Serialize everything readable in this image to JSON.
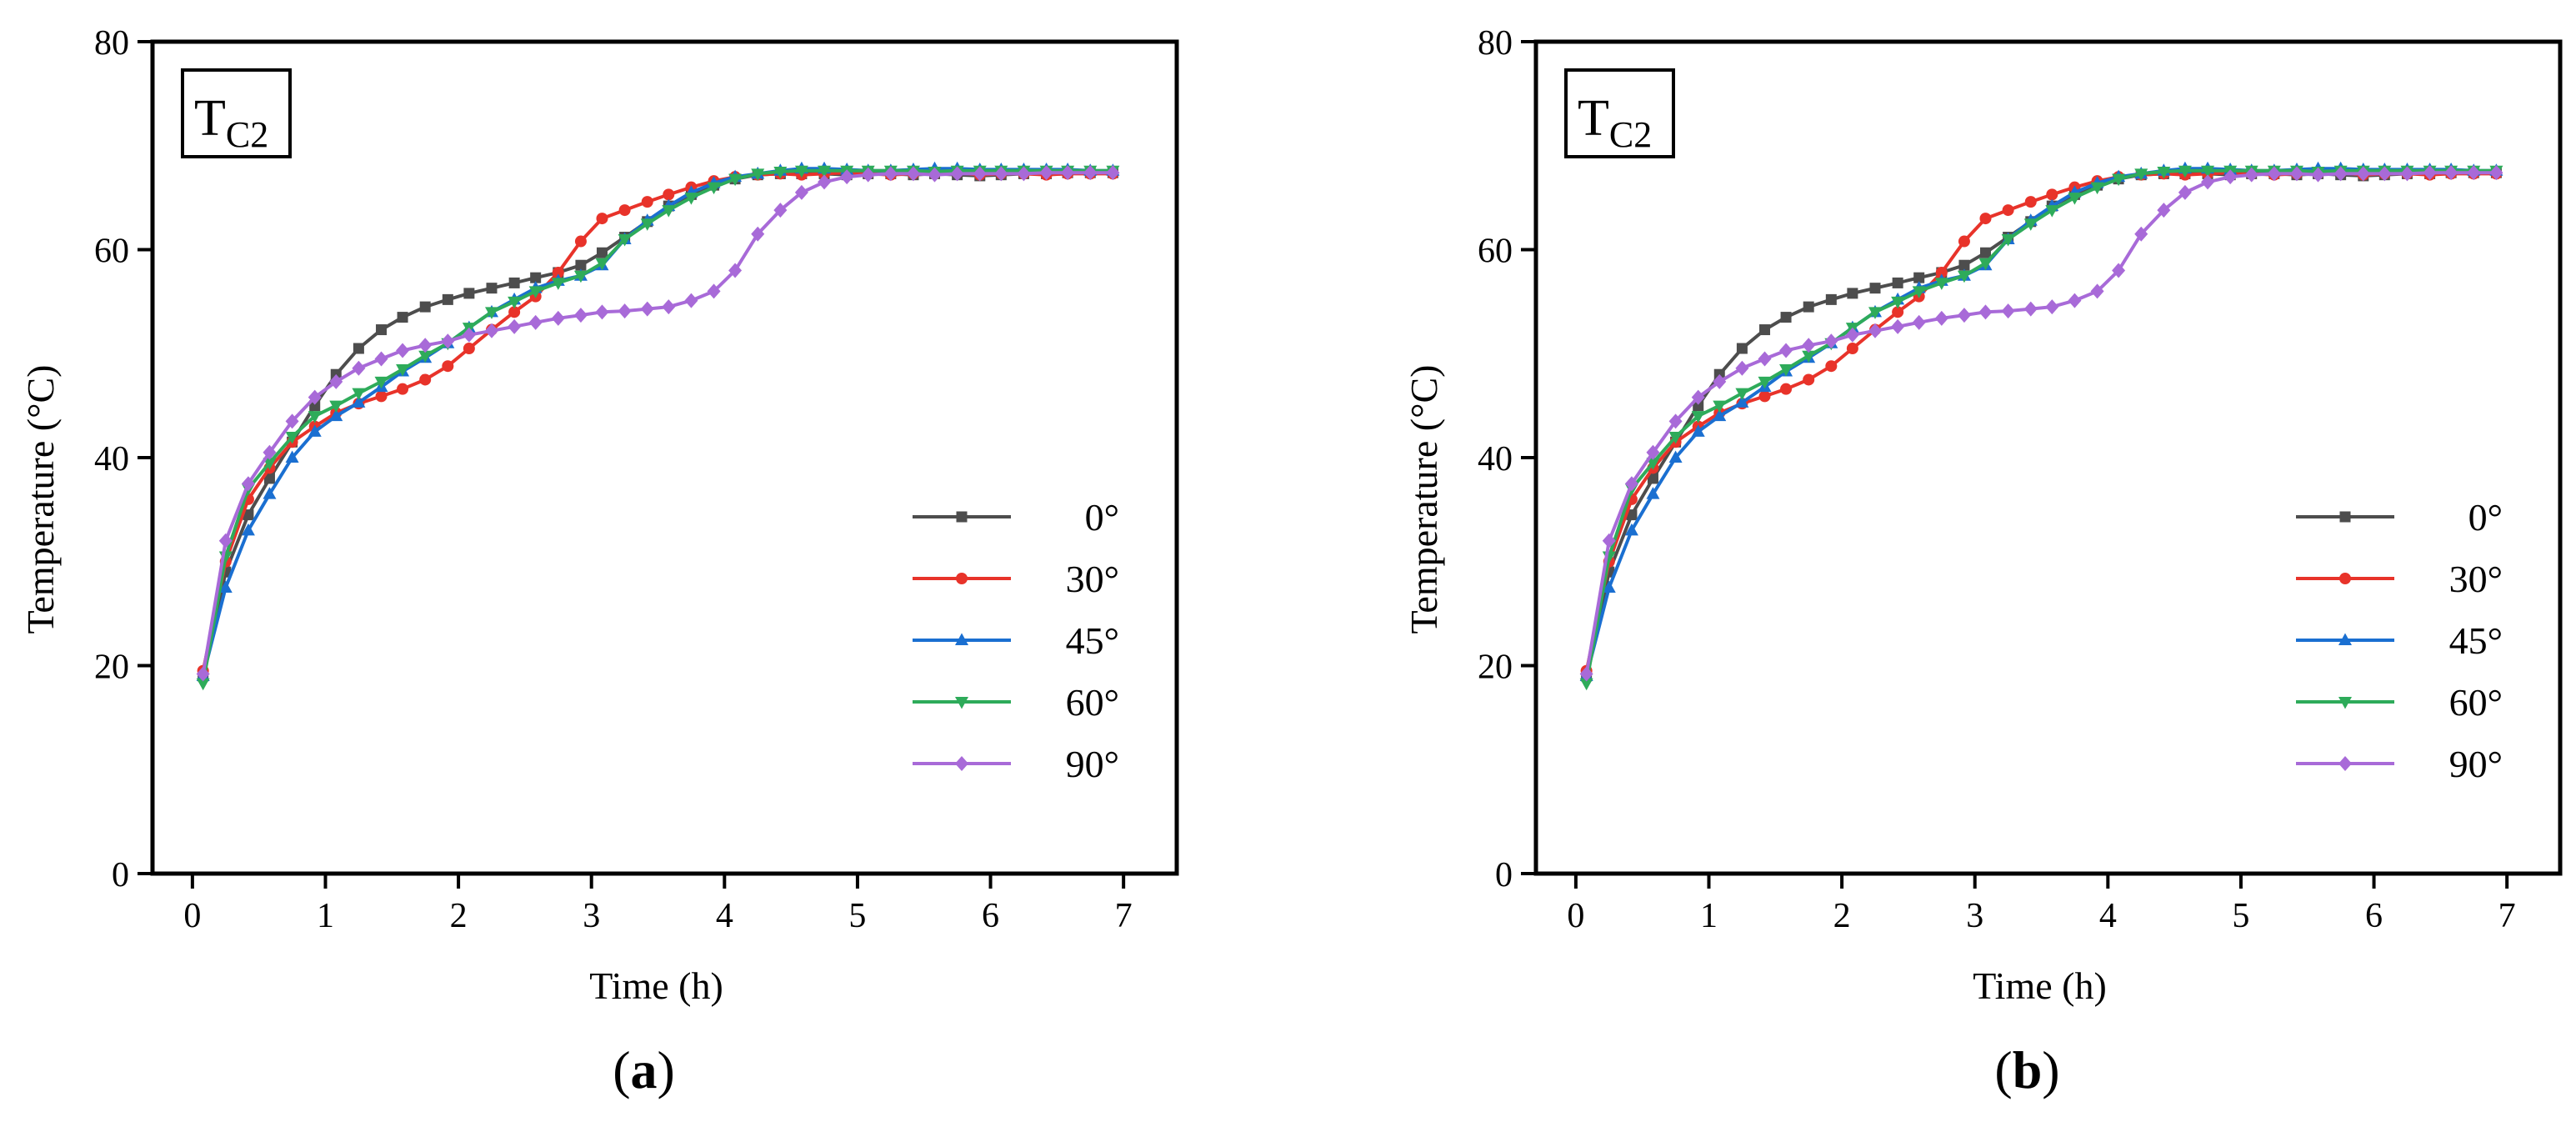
{
  "chart_data": [
    {
      "panel_label_prefix": "(",
      "panel_letter": "a",
      "panel_label_suffix": ")",
      "type": "line",
      "annotation": {
        "main": "T",
        "sub": "C2"
      },
      "xlabel": "Time (h)",
      "ylabel": "Temperature (°C)",
      "xlim": [
        -0.3,
        7.4
      ],
      "ylim": [
        0,
        80
      ],
      "xticks": [
        0,
        1,
        2,
        3,
        4,
        5,
        6,
        7
      ],
      "yticks": [
        0,
        20,
        40,
        60,
        80
      ],
      "legend_position": "lower-right",
      "series": [
        {
          "name": "0°",
          "color": "#4d4d4d",
          "marker": "square",
          "x": [
            0.08,
            0.25,
            0.42,
            0.58,
            0.75,
            0.92,
            1.08,
            1.25,
            1.42,
            1.58,
            1.75,
            1.92,
            2.08,
            2.25,
            2.42,
            2.58,
            2.75,
            2.92,
            3.08,
            3.25,
            3.42,
            3.58,
            3.75,
            3.92,
            4.08,
            4.25,
            4.42,
            4.58,
            4.75,
            4.92,
            5.08,
            5.25,
            5.42,
            5.58,
            5.75,
            5.92,
            6.08,
            6.25,
            6.42,
            6.58,
            6.75,
            6.92
          ],
          "y": [
            19.0,
            29.0,
            34.5,
            38.0,
            41.5,
            45.0,
            48.0,
            50.5,
            52.3,
            53.5,
            54.5,
            55.2,
            55.8,
            56.3,
            56.8,
            57.3,
            57.8,
            58.5,
            59.7,
            61.2,
            62.7,
            64.2,
            65.3,
            66.2,
            66.8,
            67.2,
            67.3,
            67.3,
            67.3,
            67.2,
            67.3,
            67.3,
            67.2,
            67.3,
            67.2,
            67.1,
            67.2,
            67.3,
            67.3,
            67.4,
            67.4,
            67.4
          ]
        },
        {
          "name": "30°",
          "color": "#e8332a",
          "marker": "circle",
          "x": [
            0.08,
            0.25,
            0.42,
            0.58,
            0.75,
            0.92,
            1.08,
            1.25,
            1.42,
            1.58,
            1.75,
            1.92,
            2.08,
            2.25,
            2.42,
            2.58,
            2.75,
            2.92,
            3.08,
            3.25,
            3.42,
            3.58,
            3.75,
            3.92,
            4.08,
            4.25,
            4.42,
            4.58,
            4.75,
            4.92,
            5.08,
            5.25,
            5.42,
            5.58,
            5.75,
            5.92,
            6.08,
            6.25,
            6.42,
            6.58,
            6.75,
            6.92
          ],
          "y": [
            19.5,
            30.0,
            36.0,
            39.0,
            41.5,
            43.0,
            44.3,
            45.2,
            45.9,
            46.6,
            47.5,
            48.8,
            50.5,
            52.3,
            54.0,
            55.5,
            57.8,
            60.8,
            63.0,
            63.8,
            64.6,
            65.3,
            66.0,
            66.6,
            67.0,
            67.2,
            67.3,
            67.2,
            67.3,
            67.4,
            67.3,
            67.2,
            67.3,
            67.3,
            67.4,
            67.2,
            67.3,
            67.3,
            67.2,
            67.3,
            67.3,
            67.3
          ]
        },
        {
          "name": "45°",
          "color": "#1a6fd1",
          "marker": "triangle-up",
          "x": [
            0.08,
            0.25,
            0.42,
            0.58,
            0.75,
            0.92,
            1.08,
            1.25,
            1.42,
            1.58,
            1.75,
            1.92,
            2.08,
            2.25,
            2.42,
            2.58,
            2.75,
            2.92,
            3.08,
            3.25,
            3.42,
            3.58,
            3.75,
            3.92,
            4.08,
            4.25,
            4.42,
            4.58,
            4.75,
            4.92,
            5.08,
            5.25,
            5.42,
            5.58,
            5.75,
            5.92,
            6.08,
            6.25,
            6.42,
            6.58,
            6.75,
            6.92
          ],
          "y": [
            19.0,
            27.5,
            33.0,
            36.5,
            40.0,
            42.5,
            44.0,
            45.3,
            46.8,
            48.3,
            49.6,
            51.0,
            52.5,
            54.0,
            55.2,
            56.3,
            57.0,
            57.5,
            58.5,
            61.0,
            62.8,
            64.2,
            65.5,
            66.4,
            67.0,
            67.3,
            67.6,
            67.8,
            67.8,
            67.7,
            67.6,
            67.6,
            67.7,
            67.8,
            67.8,
            67.7,
            67.7,
            67.7,
            67.7,
            67.7,
            67.6,
            67.6
          ]
        },
        {
          "name": "60°",
          "color": "#2eab5a",
          "marker": "triangle-down",
          "x": [
            0.08,
            0.25,
            0.42,
            0.58,
            0.75,
            0.92,
            1.08,
            1.25,
            1.42,
            1.58,
            1.75,
            1.92,
            2.08,
            2.25,
            2.42,
            2.58,
            2.75,
            2.92,
            3.08,
            3.25,
            3.42,
            3.58,
            3.75,
            3.92,
            4.08,
            4.25,
            4.42,
            4.58,
            4.75,
            4.92,
            5.08,
            5.25,
            5.42,
            5.58,
            5.75,
            5.92,
            6.08,
            6.25,
            6.42,
            6.58,
            6.75,
            6.92
          ],
          "y": [
            18.3,
            30.5,
            37.0,
            39.5,
            42.0,
            44.0,
            45.0,
            46.2,
            47.3,
            48.5,
            49.8,
            51.0,
            52.5,
            54.0,
            55.0,
            56.0,
            56.8,
            57.5,
            58.7,
            61.0,
            62.5,
            63.8,
            65.0,
            66.0,
            66.8,
            67.3,
            67.5,
            67.6,
            67.6,
            67.6,
            67.6,
            67.6,
            67.6,
            67.5,
            67.6,
            67.6,
            67.6,
            67.6,
            67.6,
            67.6,
            67.6,
            67.6
          ]
        },
        {
          "name": "90°",
          "color": "#a86ad8",
          "marker": "diamond",
          "x": [
            0.08,
            0.25,
            0.42,
            0.58,
            0.75,
            0.92,
            1.08,
            1.25,
            1.42,
            1.58,
            1.75,
            1.92,
            2.08,
            2.25,
            2.42,
            2.58,
            2.75,
            2.92,
            3.08,
            3.25,
            3.42,
            3.58,
            3.75,
            3.92,
            4.08,
            4.25,
            4.42,
            4.58,
            4.75,
            4.92,
            5.08,
            5.25,
            5.42,
            5.58,
            5.75,
            5.92,
            6.08,
            6.25,
            6.42,
            6.58,
            6.75,
            6.92
          ],
          "y": [
            19.2,
            32.0,
            37.5,
            40.5,
            43.5,
            45.8,
            47.3,
            48.6,
            49.5,
            50.3,
            50.8,
            51.2,
            51.8,
            52.2,
            52.6,
            53.0,
            53.4,
            53.7,
            54.0,
            54.1,
            54.3,
            54.5,
            55.1,
            56.0,
            58.0,
            61.5,
            63.8,
            65.5,
            66.5,
            67.0,
            67.2,
            67.3,
            67.3,
            67.2,
            67.3,
            67.3,
            67.3,
            67.3,
            67.4,
            67.4,
            67.4,
            67.4
          ]
        }
      ]
    },
    {
      "panel_label_prefix": "(",
      "panel_letter": "b",
      "panel_label_suffix": ")",
      "type": "line",
      "annotation": {
        "main": "T",
        "sub": "C2"
      },
      "xlabel": "Time (h)",
      "ylabel": "Temperature (°C)",
      "xlim": [
        -0.3,
        7.4
      ],
      "ylim": [
        0,
        80
      ],
      "xticks": [
        0,
        1,
        2,
        3,
        4,
        5,
        6,
        7
      ],
      "yticks": [
        0,
        20,
        40,
        60,
        80
      ],
      "legend_position": "lower-right",
      "series": [
        {
          "name": "0°",
          "color": "#4d4d4d",
          "marker": "square",
          "x": [
            0.08,
            0.25,
            0.42,
            0.58,
            0.75,
            0.92,
            1.08,
            1.25,
            1.42,
            1.58,
            1.75,
            1.92,
            2.08,
            2.25,
            2.42,
            2.58,
            2.75,
            2.92,
            3.08,
            3.25,
            3.42,
            3.58,
            3.75,
            3.92,
            4.08,
            4.25,
            4.42,
            4.58,
            4.75,
            4.92,
            5.08,
            5.25,
            5.42,
            5.58,
            5.75,
            5.92,
            6.08,
            6.25,
            6.42,
            6.58,
            6.75,
            6.92
          ],
          "y": [
            19.0,
            29.0,
            34.5,
            38.0,
            41.5,
            45.0,
            48.0,
            50.5,
            52.3,
            53.5,
            54.5,
            55.2,
            55.8,
            56.3,
            56.8,
            57.3,
            57.8,
            58.5,
            59.7,
            61.2,
            62.7,
            64.2,
            65.3,
            66.2,
            66.8,
            67.2,
            67.3,
            67.3,
            67.3,
            67.2,
            67.3,
            67.3,
            67.2,
            67.3,
            67.2,
            67.1,
            67.2,
            67.3,
            67.3,
            67.4,
            67.4,
            67.4
          ]
        },
        {
          "name": "30°",
          "color": "#e8332a",
          "marker": "circle",
          "x": [
            0.08,
            0.25,
            0.42,
            0.58,
            0.75,
            0.92,
            1.08,
            1.25,
            1.42,
            1.58,
            1.75,
            1.92,
            2.08,
            2.25,
            2.42,
            2.58,
            2.75,
            2.92,
            3.08,
            3.25,
            3.42,
            3.58,
            3.75,
            3.92,
            4.08,
            4.25,
            4.42,
            4.58,
            4.75,
            4.92,
            5.08,
            5.25,
            5.42,
            5.58,
            5.75,
            5.92,
            6.08,
            6.25,
            6.42,
            6.58,
            6.75,
            6.92
          ],
          "y": [
            19.5,
            30.0,
            36.0,
            39.0,
            41.5,
            43.0,
            44.3,
            45.2,
            45.9,
            46.6,
            47.5,
            48.8,
            50.5,
            52.3,
            54.0,
            55.5,
            57.8,
            60.8,
            63.0,
            63.8,
            64.6,
            65.3,
            66.0,
            66.6,
            67.0,
            67.2,
            67.3,
            67.2,
            67.3,
            67.4,
            67.3,
            67.2,
            67.3,
            67.3,
            67.4,
            67.2,
            67.3,
            67.3,
            67.2,
            67.3,
            67.3,
            67.3
          ]
        },
        {
          "name": "45°",
          "color": "#1a6fd1",
          "marker": "triangle-up",
          "x": [
            0.08,
            0.25,
            0.42,
            0.58,
            0.75,
            0.92,
            1.08,
            1.25,
            1.42,
            1.58,
            1.75,
            1.92,
            2.08,
            2.25,
            2.42,
            2.58,
            2.75,
            2.92,
            3.08,
            3.25,
            3.42,
            3.58,
            3.75,
            3.92,
            4.08,
            4.25,
            4.42,
            4.58,
            4.75,
            4.92,
            5.08,
            5.25,
            5.42,
            5.58,
            5.75,
            5.92,
            6.08,
            6.25,
            6.42,
            6.58,
            6.75,
            6.92
          ],
          "y": [
            19.0,
            27.5,
            33.0,
            36.5,
            40.0,
            42.5,
            44.0,
            45.3,
            46.8,
            48.3,
            49.6,
            51.0,
            52.5,
            54.0,
            55.2,
            56.3,
            57.0,
            57.5,
            58.5,
            61.0,
            62.8,
            64.2,
            65.5,
            66.4,
            67.0,
            67.3,
            67.6,
            67.8,
            67.8,
            67.7,
            67.6,
            67.6,
            67.7,
            67.8,
            67.8,
            67.7,
            67.7,
            67.7,
            67.7,
            67.7,
            67.6,
            67.6
          ]
        },
        {
          "name": "60°",
          "color": "#2eab5a",
          "marker": "triangle-down",
          "x": [
            0.08,
            0.25,
            0.42,
            0.58,
            0.75,
            0.92,
            1.08,
            1.25,
            1.42,
            1.58,
            1.75,
            1.92,
            2.08,
            2.25,
            2.42,
            2.58,
            2.75,
            2.92,
            3.08,
            3.25,
            3.42,
            3.58,
            3.75,
            3.92,
            4.08,
            4.25,
            4.42,
            4.58,
            4.75,
            4.92,
            5.08,
            5.25,
            5.42,
            5.58,
            5.75,
            5.92,
            6.08,
            6.25,
            6.42,
            6.58,
            6.75,
            6.92
          ],
          "y": [
            18.3,
            30.5,
            37.0,
            39.5,
            42.0,
            44.0,
            45.0,
            46.2,
            47.3,
            48.5,
            49.8,
            51.0,
            52.5,
            54.0,
            55.0,
            56.0,
            56.8,
            57.5,
            58.7,
            61.0,
            62.5,
            63.8,
            65.0,
            66.0,
            66.8,
            67.3,
            67.5,
            67.6,
            67.6,
            67.6,
            67.6,
            67.6,
            67.6,
            67.5,
            67.6,
            67.6,
            67.6,
            67.6,
            67.6,
            67.6,
            67.6,
            67.6
          ]
        },
        {
          "name": "90°",
          "color": "#a86ad8",
          "marker": "diamond",
          "x": [
            0.08,
            0.25,
            0.42,
            0.58,
            0.75,
            0.92,
            1.08,
            1.25,
            1.42,
            1.58,
            1.75,
            1.92,
            2.08,
            2.25,
            2.42,
            2.58,
            2.75,
            2.92,
            3.08,
            3.25,
            3.42,
            3.58,
            3.75,
            3.92,
            4.08,
            4.25,
            4.42,
            4.58,
            4.75,
            4.92,
            5.08,
            5.25,
            5.42,
            5.58,
            5.75,
            5.92,
            6.08,
            6.25,
            6.42,
            6.58,
            6.75,
            6.92
          ],
          "y": [
            19.2,
            32.0,
            37.5,
            40.5,
            43.5,
            45.8,
            47.3,
            48.6,
            49.5,
            50.3,
            50.8,
            51.2,
            51.8,
            52.2,
            52.6,
            53.0,
            53.4,
            53.7,
            54.0,
            54.1,
            54.3,
            54.5,
            55.1,
            56.0,
            58.0,
            61.5,
            63.8,
            65.5,
            66.5,
            67.0,
            67.2,
            67.3,
            67.3,
            67.2,
            67.3,
            67.3,
            67.3,
            67.3,
            67.4,
            67.4,
            67.4,
            67.4
          ]
        }
      ]
    }
  ]
}
